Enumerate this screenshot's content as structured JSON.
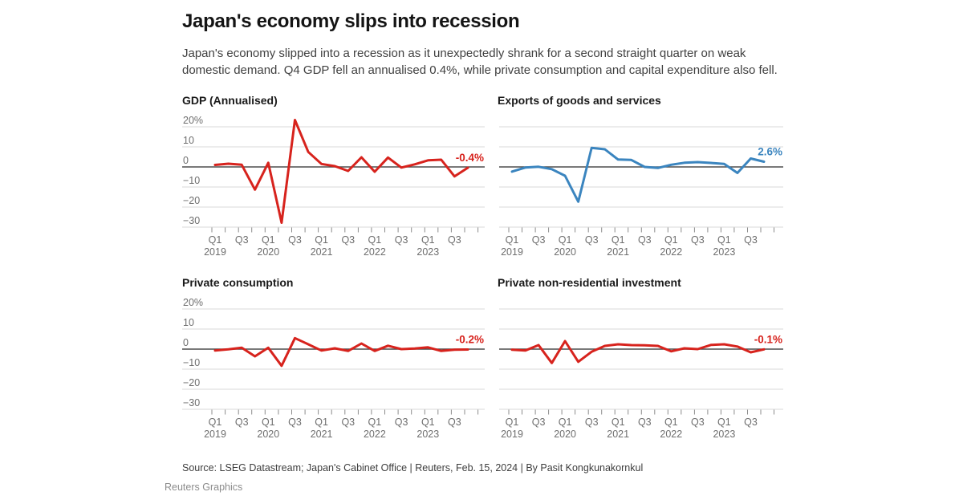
{
  "header": {
    "title": "Japan's economy slips into recession",
    "subtitle": "Japan's economy slipped into a recession as it unexpectedly shrank for a second straight quarter on weak domestic demand. Q4 GDP fell an annualised 0.4%, while private consumption and capital expenditure also fell."
  },
  "colors": {
    "red": "#d7231d",
    "blue": "#3b85bf",
    "grid": "#d9d9d9",
    "zero_axis": "#4d4d4d",
    "tick": "#8c8c8c",
    "axis_label": "#6e6e6e"
  },
  "axis": {
    "categories": [
      "Q1 2019",
      "Q2 2019",
      "Q3 2019",
      "Q4 2019",
      "Q1 2020",
      "Q2 2020",
      "Q3 2020",
      "Q4 2020",
      "Q1 2021",
      "Q2 2021",
      "Q3 2021",
      "Q4 2021",
      "Q1 2022",
      "Q2 2022",
      "Q3 2022",
      "Q4 2022",
      "Q1 2023",
      "Q2 2023",
      "Q3 2023",
      "Q4 2023"
    ],
    "quarter_tick_labels": [
      "Q1",
      "Q3"
    ],
    "year_labels": [
      "2019",
      "2020",
      "2021",
      "2022",
      "2023"
    ],
    "y_tick_labels": [
      "20%",
      "10",
      "0",
      "−10",
      "−20",
      "−30"
    ],
    "y_tick_values": [
      20,
      10,
      0,
      -10,
      -20,
      -30
    ]
  },
  "chart_data": [
    {
      "type": "line",
      "title": "GDP (Annualised)",
      "unit": "%",
      "color": "red",
      "end_label": "-0.4%",
      "show_y_labels": true,
      "ylim": [
        -30,
        20
      ],
      "values": [
        1.0,
        1.6,
        1.1,
        -11.3,
        2.1,
        -27.8,
        23.4,
        7.5,
        1.5,
        0.4,
        -2.0,
        4.8,
        -2.4,
        4.7,
        -0.3,
        1.3,
        3.3,
        3.6,
        -4.7,
        -0.4
      ]
    },
    {
      "type": "line",
      "title": "Exports of goods and services",
      "unit": "%",
      "color": "blue",
      "end_label": "2.6%",
      "show_y_labels": false,
      "ylim": [
        -30,
        20
      ],
      "values": [
        -2.3,
        -0.3,
        0.1,
        -1.1,
        -4.4,
        -17.3,
        9.5,
        8.8,
        3.7,
        3.5,
        0.0,
        -0.5,
        1.1,
        2.1,
        2.4,
        2.0,
        1.5,
        -3.0,
        4.2,
        2.6
      ]
    },
    {
      "type": "line",
      "title": "Private consumption",
      "unit": "%",
      "color": "red",
      "end_label": "-0.2%",
      "show_y_labels": true,
      "ylim": [
        -30,
        20
      ],
      "values": [
        -0.7,
        -0.1,
        0.7,
        -3.6,
        0.7,
        -8.3,
        5.5,
        2.4,
        -0.7,
        0.4,
        -0.9,
        2.8,
        -0.9,
        1.7,
        0.0,
        0.3,
        0.9,
        -0.9,
        -0.3,
        -0.2
      ]
    },
    {
      "type": "line",
      "title": "Private non-residential investment",
      "unit": "%",
      "color": "red",
      "end_label": "-0.1%",
      "show_y_labels": false,
      "ylim": [
        -30,
        20
      ],
      "values": [
        -0.3,
        -0.7,
        2.0,
        -6.9,
        4.0,
        -6.3,
        -1.3,
        1.6,
        2.4,
        2.0,
        1.9,
        1.6,
        -1.1,
        0.4,
        0.0,
        2.1,
        2.4,
        1.3,
        -1.6,
        -0.1
      ]
    }
  ],
  "footer": {
    "source": "Source: LSEG Datastream; Japan's Cabinet Office | Reuters, Feb. 15, 2024 | By Pasit Kongkunakornkul",
    "credit": "Reuters Graphics"
  }
}
